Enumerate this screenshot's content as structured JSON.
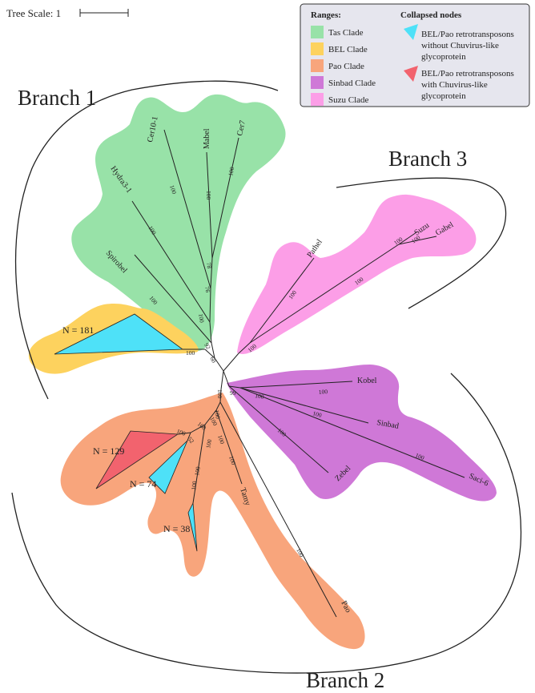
{
  "scale": {
    "label": "Tree Scale: 1"
  },
  "legend": {
    "ranges_title": "Ranges:",
    "collapsed_title": "Collapsed nodes",
    "ranges": [
      {
        "label": "Tas Clade",
        "color": "#98e2a8"
      },
      {
        "label": "BEL Clade",
        "color": "#fdd25e"
      },
      {
        "label": "Pao Clade",
        "color": "#f8a57c"
      },
      {
        "label": "Sinbad Clade",
        "color": "#cf78d7"
      },
      {
        "label": "Suzu Clade",
        "color": "#fc9ee7"
      }
    ],
    "collapsed": [
      {
        "lines": [
          "BEL/Pao retrotransposons",
          "without Chuvirus-like",
          "glycoprotein"
        ],
        "color": "#4ee1f8"
      },
      {
        "lines": [
          "BEL/Pao retrotransposons",
          "with Chuvirus-like",
          "glycoprotein"
        ],
        "color": "#f2636e"
      }
    ]
  },
  "branches": {
    "b1": "Branch 1",
    "b2": "Branch 2",
    "b3": "Branch 3"
  },
  "collapsed_counts": {
    "bel": "N = 181",
    "pao_red": "N = 129",
    "pao_cyan1": "N = 74",
    "pao_cyan2": "N = 38"
  },
  "leaves": {
    "cer10": "Cer10-1",
    "mabel": "Mabel",
    "cer7": "Cer7",
    "hydra": "Hydra3-1",
    "spirobel": "Spirobel",
    "pathel": "Pathel",
    "suzu": "Suzu",
    "gabel": "Gabel",
    "kobel": "Kobel",
    "sinbad": "Sinbad",
    "zebel": "Zebel",
    "saci": "Saci-6",
    "tamy": "Tamy",
    "pao": "Pao"
  },
  "bootstrap": {
    "cer10": "100",
    "mabel": "100",
    "cer7": "100",
    "hydra": "100",
    "tas_78": "78",
    "tas_76": "76",
    "tas_100a": "100",
    "spirobel": "100",
    "tas_92": "92",
    "tas_60": "60",
    "bel": "100",
    "suzu_node": "100",
    "gabel": "100",
    "pathel_node": "100",
    "pathel": "100",
    "suzu_base": "100",
    "sinbad_base": "99",
    "kobel": "100",
    "sinbad_a": "100",
    "sinbad_b": "100",
    "zebel": "100",
    "saci": "100",
    "pao_root": "100",
    "pao_a": "100",
    "pao_b": "100",
    "pao_c": "100",
    "pao_d": "100",
    "pao_e": "100",
    "pao_f": "100",
    "pao_g": "100",
    "pao_h": "100",
    "pao_52": "52",
    "pao_i": "100",
    "pao_tip": "100"
  }
}
